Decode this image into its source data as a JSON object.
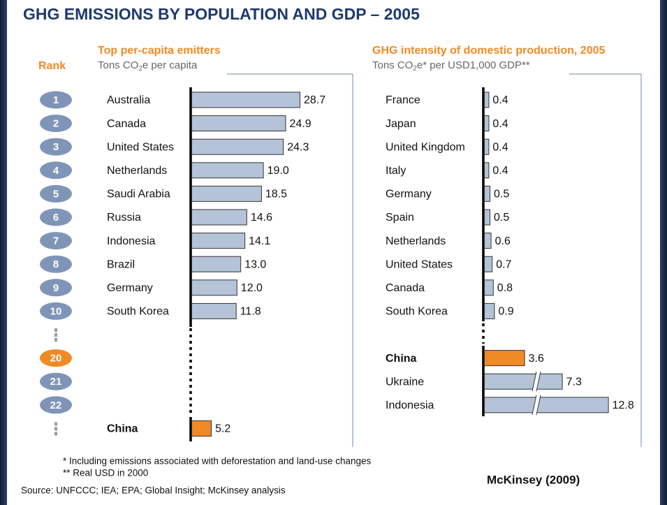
{
  "title": "GHG EMISSIONS BY POPULATION AND GDP – 2005",
  "rank_header": "Rank",
  "ranks": [
    1,
    2,
    3,
    4,
    5,
    6,
    7,
    8,
    9,
    10,
    20,
    21,
    22
  ],
  "rank_colors": [
    "#7f95b8",
    "#7f95b8",
    "#7f95b8",
    "#7f95b8",
    "#7f95b8",
    "#7f95b8",
    "#7f95b8",
    "#7f95b8",
    "#7f95b8",
    "#7f95b8",
    "#f08a24",
    "#7f95b8",
    "#7f95b8"
  ],
  "chart_data": [
    {
      "type": "bar",
      "orientation": "horizontal",
      "title": "Top per-capita emitters",
      "subtitle_parts": [
        "Tons CO",
        "2",
        "e per capita"
      ],
      "categories": [
        "Australia",
        "Canada",
        "United States",
        "Netherlands",
        "Saudi Arabia",
        "Russia",
        "Indonesia",
        "Brazil",
        "Germany",
        "South Korea",
        "China"
      ],
      "values": [
        28.7,
        24.9,
        24.3,
        19,
        18.5,
        14.6,
        14.1,
        13,
        12,
        11.8,
        5.2
      ],
      "value_labels": [
        "28.7",
        "24.9",
        "24.3",
        "19.0",
        "18.5",
        "14.6",
        "14.1",
        "13.0",
        "12.0",
        "11.8",
        "5.2"
      ],
      "color": "#b4c3d8",
      "colors": [
        "#b4c3d8",
        "#b4c3d8",
        "#b4c3d8",
        "#b4c3d8",
        "#b4c3d8",
        "#b4c3d8",
        "#b4c3d8",
        "#b4c3d8",
        "#b4c3d8",
        "#b4c3d8",
        "#f08a24"
      ],
      "xlim": [
        0,
        30
      ]
    },
    {
      "type": "bar",
      "orientation": "horizontal",
      "title": "GHG intensity of domestic production, 2005",
      "subtitle_parts": [
        "Tons CO",
        "2",
        "e* per USD1,000 GDP**"
      ],
      "categories": [
        "France",
        "Japan",
        "United Kingdom",
        "Italy",
        "Germany",
        "Spain",
        "Netherlands",
        "United States",
        "Canada",
        "South Korea",
        "China",
        "Ukraine",
        "Indonesia"
      ],
      "values": [
        0.4,
        0.4,
        0.4,
        0.4,
        0.5,
        0.5,
        0.6,
        0.7,
        0.8,
        0.9,
        3.6,
        7.3,
        12.8
      ],
      "color": "#b4c3d8",
      "colors": [
        "#b4c3d8",
        "#b4c3d8",
        "#b4c3d8",
        "#b4c3d8",
        "#b4c3d8",
        "#b4c3d8",
        "#b4c3d8",
        "#b4c3d8",
        "#b4c3d8",
        "#b4c3d8",
        "#f08a24",
        "#b4c3d8",
        "#b4c3d8"
      ],
      "xlim": [
        0,
        4
      ],
      "axis_break": true
    }
  ],
  "footnotes": [
    "* Including emissions associated with deforestation and land-use changes",
    "** Real USD in 2000"
  ],
  "source": "Source: UNFCCC; IEA; EPA; Global Insight; McKinsey analysis",
  "credit": "McKinsey (2009)"
}
